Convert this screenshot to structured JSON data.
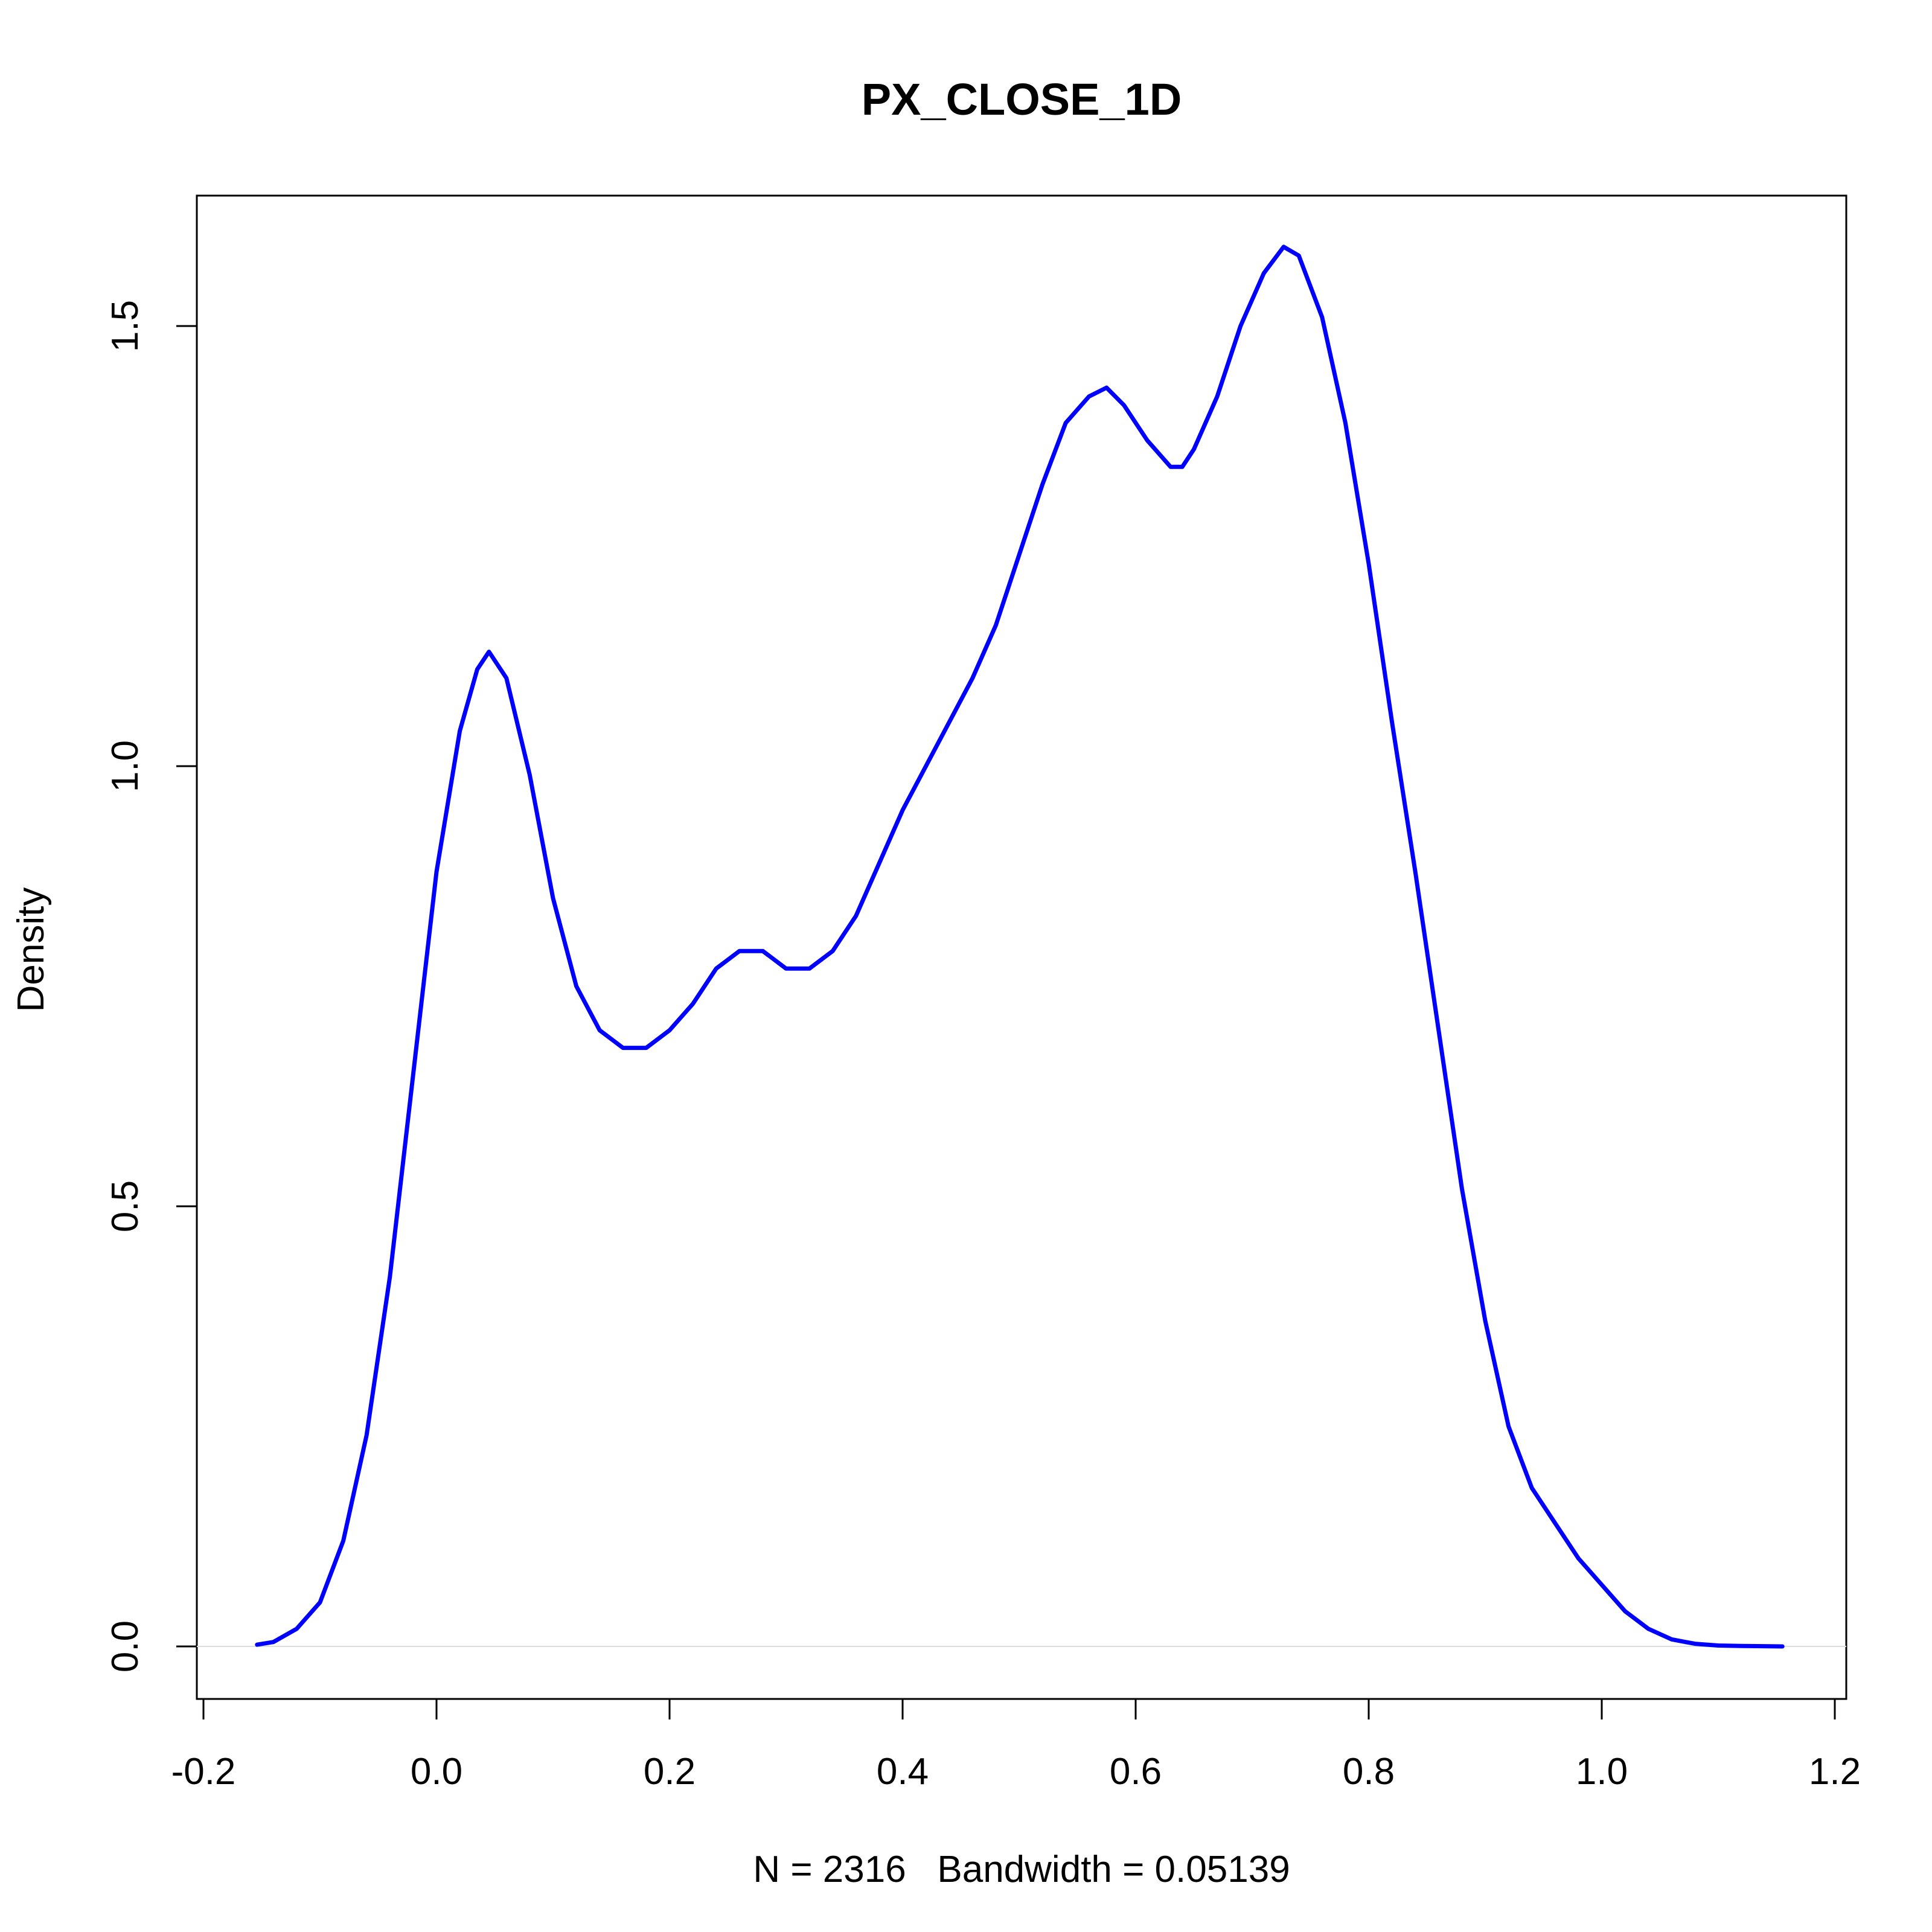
{
  "chart_data": {
    "type": "line",
    "title": "PX_CLOSE_1D",
    "xlabel": "N = 2316   Bandwidth = 0.05139",
    "ylabel": "Density",
    "xlim": [
      -0.2,
      1.2
    ],
    "ylim": [
      0.0,
      1.6
    ],
    "x_ticks": [
      "-0.2",
      "0.0",
      "0.2",
      "0.4",
      "0.6",
      "0.8",
      "1.0",
      "1.2"
    ],
    "y_ticks": [
      "0.0",
      "0.5",
      "1.0",
      "1.5"
    ],
    "grid": false,
    "legend": "none",
    "line_color": "#0000ff",
    "baseline_color": "#dddddd",
    "series": [
      {
        "x": [
          -0.154,
          -0.14,
          -0.12,
          -0.1,
          -0.08,
          -0.06,
          -0.04,
          -0.02,
          0.0,
          0.02,
          0.035,
          0.045,
          0.06,
          0.08,
          0.1,
          0.12,
          0.14,
          0.16,
          0.18,
          0.2,
          0.22,
          0.24,
          0.26,
          0.28,
          0.3,
          0.32,
          0.34,
          0.36,
          0.38,
          0.4,
          0.42,
          0.44,
          0.46,
          0.48,
          0.5,
          0.52,
          0.54,
          0.56,
          0.575,
          0.59,
          0.61,
          0.63,
          0.64,
          0.65,
          0.67,
          0.69,
          0.71,
          0.727,
          0.74,
          0.76,
          0.78,
          0.8,
          0.82,
          0.84,
          0.86,
          0.88,
          0.9,
          0.92,
          0.94,
          0.96,
          0.98,
          1.0,
          1.02,
          1.04,
          1.06,
          1.08,
          1.1,
          1.12,
          1.155
        ],
        "y": [
          0.002,
          0.005,
          0.02,
          0.05,
          0.12,
          0.24,
          0.42,
          0.65,
          0.88,
          1.04,
          1.11,
          1.13,
          1.1,
          0.99,
          0.85,
          0.75,
          0.7,
          0.68,
          0.68,
          0.7,
          0.73,
          0.77,
          0.79,
          0.79,
          0.77,
          0.77,
          0.79,
          0.83,
          0.89,
          0.95,
          1.0,
          1.05,
          1.1,
          1.16,
          1.24,
          1.32,
          1.39,
          1.42,
          1.43,
          1.41,
          1.37,
          1.34,
          1.34,
          1.36,
          1.42,
          1.5,
          1.56,
          1.59,
          1.58,
          1.51,
          1.39,
          1.23,
          1.05,
          0.88,
          0.7,
          0.52,
          0.37,
          0.25,
          0.18,
          0.14,
          0.1,
          0.07,
          0.04,
          0.02,
          0.008,
          0.003,
          0.001,
          0.0005,
          0.0
        ]
      }
    ]
  }
}
